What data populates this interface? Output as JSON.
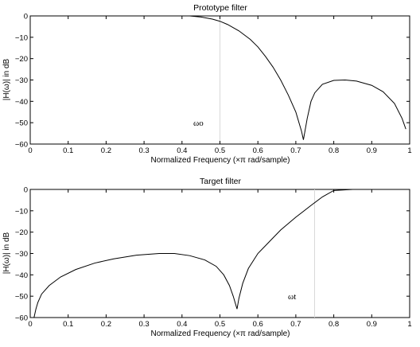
{
  "chart_data": [
    {
      "type": "line",
      "title": "Prototype filter",
      "xlabel": "Normalized Frequency  (×π rad/sample)",
      "ylabel": "|H(ω)| in dB",
      "xlim": [
        0,
        1
      ],
      "ylim": [
        -60,
        0
      ],
      "xticks": [
        "0",
        "0.1",
        "0.2",
        "0.3",
        "0.4",
        "0.5",
        "0.6",
        "0.7",
        "0.8",
        "0.9",
        "1"
      ],
      "yticks": [
        "0",
        "−10",
        "−20",
        "−30",
        "−40",
        "−50",
        "−60"
      ],
      "grid": false,
      "series": [
        {
          "x": [
            0.42,
            0.45,
            0.48,
            0.5,
            0.52,
            0.55,
            0.58,
            0.6,
            0.62,
            0.64,
            0.66,
            0.68,
            0.69,
            0.7,
            0.705,
            0.71,
            0.715,
            0.72,
            0.73,
            0.74,
            0.75,
            0.77,
            0.8,
            0.83,
            0.86,
            0.9,
            0.93,
            0.96,
            0.98,
            0.99
          ],
          "y": [
            0,
            -0.5,
            -1.5,
            -2.5,
            -4,
            -7,
            -11,
            -14.5,
            -19,
            -24,
            -30,
            -37,
            -41,
            -45,
            -48,
            -51,
            -54,
            -58,
            -48,
            -40,
            -36,
            -32,
            -30.2,
            -30,
            -30.5,
            -32.5,
            -35.5,
            -41,
            -48,
            -53
          ]
        }
      ],
      "marker": {
        "x": 0.5,
        "label": "ωo",
        "label_x": 0.42,
        "label_y": -50
      }
    },
    {
      "type": "line",
      "title": "Target filter",
      "xlabel": "Normalized Frequency  (×π rad/sample)",
      "ylabel": "|H(ω)| in dB",
      "xlim": [
        0,
        1
      ],
      "ylim": [
        -60,
        0
      ],
      "xticks": [
        "0",
        "0.1",
        "0.2",
        "0.3",
        "0.4",
        "0.5",
        "0.6",
        "0.7",
        "0.8",
        "0.9",
        "1"
      ],
      "yticks": [
        "0",
        "−10",
        "−20",
        "−30",
        "−40",
        "−50",
        "−60"
      ],
      "grid": false,
      "series": [
        {
          "x": [
            0.01,
            0.015,
            0.02,
            0.03,
            0.05,
            0.08,
            0.12,
            0.17,
            0.22,
            0.28,
            0.34,
            0.38,
            0.42,
            0.46,
            0.49,
            0.51,
            0.525,
            0.535,
            0.545,
            0.55,
            0.56,
            0.575,
            0.6,
            0.63,
            0.66,
            0.7,
            0.74,
            0.77,
            0.8,
            0.85,
            0.9,
            0.94
          ],
          "y": [
            -60,
            -56,
            -53,
            -49,
            -45,
            -41,
            -37.5,
            -34.5,
            -32.5,
            -30.8,
            -30,
            -30,
            -31,
            -33,
            -36,
            -40,
            -45,
            -50,
            -56,
            -51,
            -44,
            -37,
            -30,
            -24.5,
            -19,
            -13,
            -7.5,
            -3.5,
            -0.5,
            0,
            0,
            0
          ]
        }
      ],
      "marker": {
        "x": 0.75,
        "label": "ωt",
        "label_x": 0.68,
        "label_y": -50
      }
    }
  ]
}
